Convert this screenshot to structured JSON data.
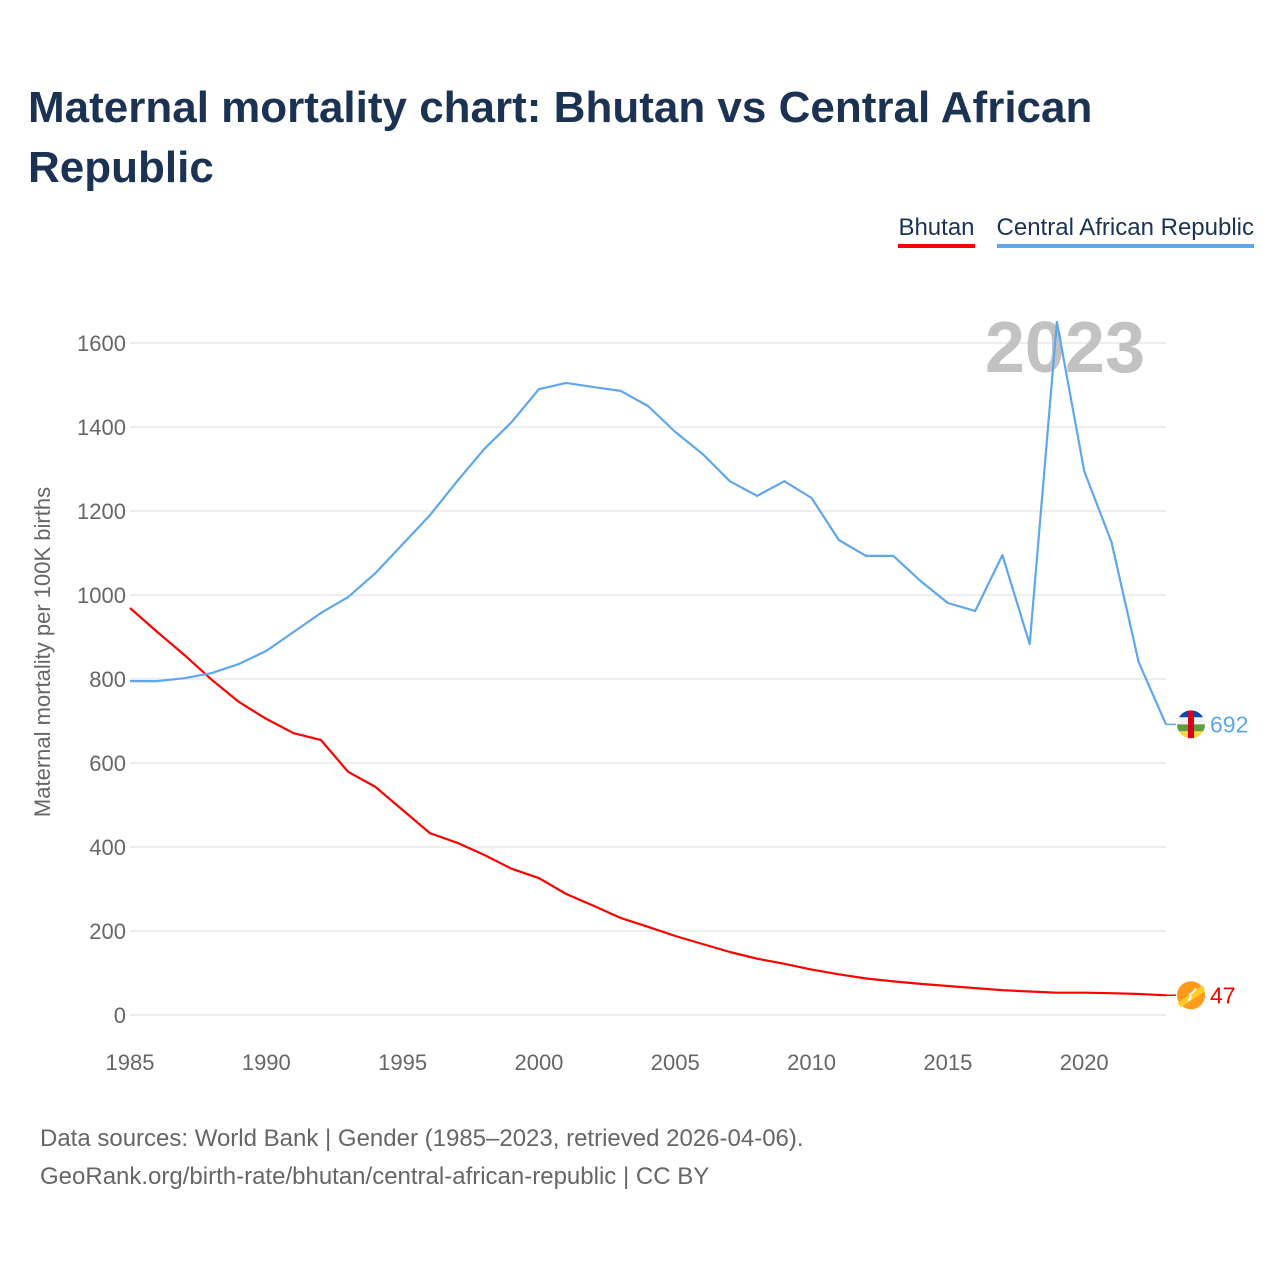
{
  "chart_data": {
    "type": "line",
    "title": "Maternal mortality chart: Bhutan vs Central African Republic",
    "ylabel": "Maternal mortality per 100K births",
    "xlabel": "",
    "xlim": [
      1985,
      2023
    ],
    "ylim": [
      0,
      1600
    ],
    "x_ticks": [
      "1985",
      "1990",
      "1995",
      "2000",
      "2005",
      "2010",
      "2015",
      "2020"
    ],
    "y_ticks": [
      "0",
      "200",
      "400",
      "600",
      "800",
      "1000",
      "1200",
      "1400",
      "1600"
    ],
    "grid": true,
    "legend_placement": "top-right",
    "year_label": "2023",
    "x": [
      1985,
      1986,
      1987,
      1988,
      1989,
      1990,
      1991,
      1992,
      1993,
      1994,
      1995,
      1996,
      1997,
      1998,
      1999,
      2000,
      2001,
      2002,
      2003,
      2004,
      2005,
      2006,
      2007,
      2008,
      2009,
      2010,
      2011,
      2012,
      2013,
      2014,
      2015,
      2016,
      2017,
      2018,
      2019,
      2020,
      2021,
      2022,
      2023
    ],
    "series": [
      {
        "name": "Bhutan",
        "color": "#ff0000",
        "end_label": "47",
        "values": [
          969,
          912,
          857,
          798,
          745,
          705,
          671,
          655,
          579,
          543,
          488,
          433,
          410,
          381,
          348,
          326,
          288,
          260,
          231,
          210,
          188,
          169,
          150,
          134,
          122,
          108,
          97,
          87,
          80,
          74,
          69,
          64,
          59,
          56,
          53,
          53,
          52,
          50,
          47
        ]
      },
      {
        "name": "Central African Republic",
        "color": "#5ea7ec",
        "end_label": "692",
        "values": [
          795,
          795,
          802,
          814,
          836,
          867,
          912,
          957,
          995,
          1052,
          1121,
          1190,
          1271,
          1348,
          1412,
          1490,
          1505,
          1495,
          1486,
          1450,
          1388,
          1336,
          1271,
          1236,
          1271,
          1231,
          1131,
          1093,
          1093,
          1033,
          981,
          962,
          1095,
          883,
          1650,
          1295,
          1126,
          840,
          692
        ]
      }
    ]
  },
  "source_line1": "Data sources: World Bank | Gender (1985–2023, retrieved 2026-04-06).",
  "source_line2": "GeoRank.org/birth-rate/bhutan/central-african-republic | CC BY"
}
